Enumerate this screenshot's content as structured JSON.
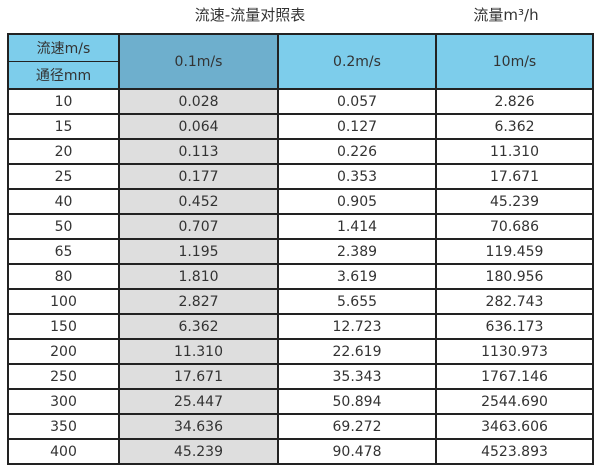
{
  "page": {
    "title_center": "流速-流量对照表",
    "title_right": "流量m³/h"
  },
  "table": {
    "header": {
      "top_left_top": "流速m/s",
      "top_left_bottom": "通径mm",
      "velocity_columns": [
        "0.1m/s",
        "0.2m/s",
        "10m/s"
      ]
    },
    "rows": [
      [
        "10",
        "0.028",
        "0.057",
        "2.826"
      ],
      [
        "15",
        "0.064",
        "0.127",
        "6.362"
      ],
      [
        "20",
        "0.113",
        "0.226",
        "11.310"
      ],
      [
        "25",
        "0.177",
        "0.353",
        "17.671"
      ],
      [
        "40",
        "0.452",
        "0.905",
        "45.239"
      ],
      [
        "50",
        "0.707",
        "1.414",
        "70.686"
      ],
      [
        "65",
        "1.195",
        "2.389",
        "119.459"
      ],
      [
        "80",
        "1.810",
        "3.619",
        "180.956"
      ],
      [
        "100",
        "2.827",
        "5.655",
        "282.743"
      ],
      [
        "150",
        "6.362",
        "12.723",
        "636.173"
      ],
      [
        "200",
        "11.310",
        "22.619",
        "1130.973"
      ],
      [
        "250",
        "17.671",
        "35.343",
        "1767.146"
      ],
      [
        "300",
        "25.447",
        "50.894",
        "2544.690"
      ],
      [
        "350",
        "34.636",
        "69.272",
        "3463.606"
      ],
      [
        "400",
        "45.239",
        "90.478",
        "4523.893"
      ]
    ]
  },
  "colors": {
    "header_blue": "#7DCDEB",
    "header_blue_dark": "#6EAFCD",
    "column_gray": "#DEDEDE",
    "border": "#222222",
    "text": "#333333"
  },
  "chart_data": {
    "type": "table",
    "title": "流速-流量对照表",
    "right_unit_label": "流量m³/h",
    "columns": [
      "通径mm",
      "0.1m/s",
      "0.2m/s",
      "10m/s"
    ],
    "column_group_label": "流速m/s",
    "rows": [
      [
        10,
        0.028,
        0.057,
        2.826
      ],
      [
        15,
        0.064,
        0.127,
        6.362
      ],
      [
        20,
        0.113,
        0.226,
        11.31
      ],
      [
        25,
        0.177,
        0.353,
        17.671
      ],
      [
        40,
        0.452,
        0.905,
        45.239
      ],
      [
        50,
        0.707,
        1.414,
        70.686
      ],
      [
        65,
        1.195,
        2.389,
        119.459
      ],
      [
        80,
        1.81,
        3.619,
        180.956
      ],
      [
        100,
        2.827,
        5.655,
        282.743
      ],
      [
        150,
        6.362,
        12.723,
        636.173
      ],
      [
        200,
        11.31,
        22.619,
        1130.973
      ],
      [
        250,
        17.671,
        35.343,
        1767.146
      ],
      [
        300,
        25.447,
        50.894,
        2544.69
      ],
      [
        350,
        34.636,
        69.272,
        3463.606
      ],
      [
        400,
        45.239,
        90.478,
        4523.893
      ]
    ]
  }
}
